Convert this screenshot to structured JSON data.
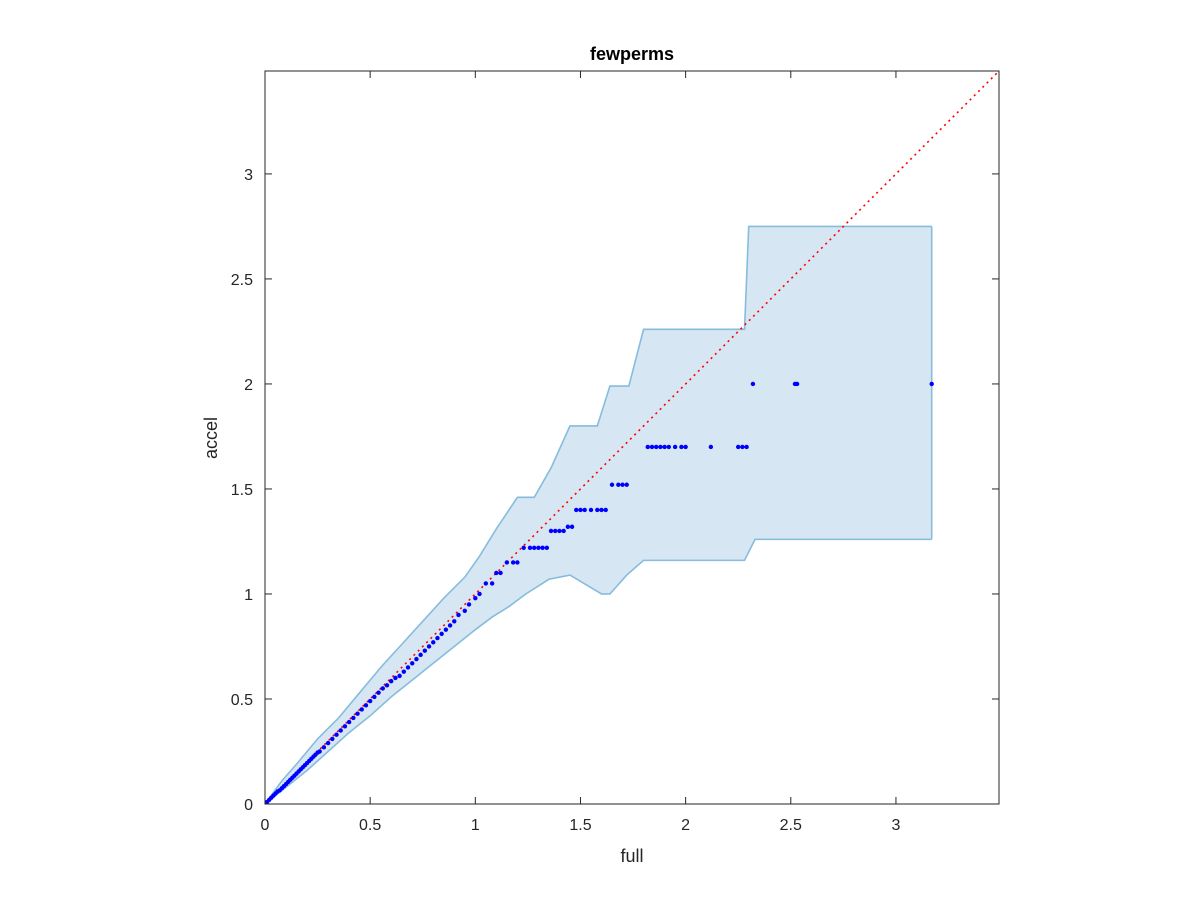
{
  "chart_data": {
    "type": "scatter",
    "title": "fewperms",
    "xlabel": "full",
    "ylabel": "accel",
    "xlim": [
      0,
      3.49
    ],
    "ylim": [
      0,
      3.49
    ],
    "xticks": [
      0,
      0.5,
      1,
      1.5,
      2,
      2.5,
      3
    ],
    "yticks": [
      0,
      0.5,
      1,
      1.5,
      2,
      2.5,
      3
    ],
    "xtick_labels": [
      "0",
      "0.5",
      "1",
      "1.5",
      "2",
      "2.5",
      "3"
    ],
    "ytick_labels": [
      "0",
      "0.5",
      "1",
      "1.5",
      "2",
      "2.5",
      "3"
    ],
    "grid": false,
    "colors": {
      "points": "#0000ff",
      "reference_line": "#ff0000",
      "band_fill": "#d6e6f3",
      "band_edge": "#86bcdc",
      "axes": "#262626"
    },
    "reference_line": {
      "style": "dotted",
      "x": [
        0,
        3.49
      ],
      "y": [
        0,
        3.49
      ]
    },
    "band": {
      "upper": [
        [
          0,
          0
        ],
        [
          0.08,
          0.11
        ],
        [
          0.15,
          0.19
        ],
        [
          0.25,
          0.31
        ],
        [
          0.35,
          0.41
        ],
        [
          0.45,
          0.53
        ],
        [
          0.55,
          0.65
        ],
        [
          0.65,
          0.76
        ],
        [
          0.75,
          0.87
        ],
        [
          0.85,
          0.98
        ],
        [
          0.95,
          1.08
        ],
        [
          1.02,
          1.18
        ],
        [
          1.1,
          1.31
        ],
        [
          1.2,
          1.46
        ],
        [
          1.28,
          1.46
        ],
        [
          1.36,
          1.6
        ],
        [
          1.45,
          1.8
        ],
        [
          1.58,
          1.8
        ],
        [
          1.64,
          1.99
        ],
        [
          1.73,
          1.99
        ],
        [
          1.8,
          2.26
        ],
        [
          2.28,
          2.26
        ],
        [
          2.3,
          2.75
        ],
        [
          3.17,
          2.75
        ]
      ],
      "lower": [
        [
          0,
          0
        ],
        [
          0.1,
          0.08
        ],
        [
          0.2,
          0.16
        ],
        [
          0.3,
          0.25
        ],
        [
          0.4,
          0.34
        ],
        [
          0.5,
          0.42
        ],
        [
          0.6,
          0.51
        ],
        [
          0.7,
          0.59
        ],
        [
          0.8,
          0.67
        ],
        [
          0.9,
          0.75
        ],
        [
          1.0,
          0.83
        ],
        [
          1.08,
          0.89
        ],
        [
          1.16,
          0.94
        ],
        [
          1.24,
          1.0
        ],
        [
          1.35,
          1.07
        ],
        [
          1.45,
          1.09
        ],
        [
          1.6,
          1.0
        ],
        [
          1.64,
          1.0
        ],
        [
          1.72,
          1.09
        ],
        [
          1.8,
          1.16
        ],
        [
          2.28,
          1.16
        ],
        [
          2.33,
          1.26
        ],
        [
          3.17,
          1.26
        ]
      ]
    },
    "series": [
      {
        "x": [
          0.01,
          0.02,
          0.03,
          0.04,
          0.05,
          0.06,
          0.07,
          0.08,
          0.09,
          0.1,
          0.11,
          0.12,
          0.13,
          0.14,
          0.15,
          0.16,
          0.17,
          0.18,
          0.19,
          0.2,
          0.21,
          0.22,
          0.23,
          0.24,
          0.25,
          0.26,
          0.28,
          0.3,
          0.32,
          0.34,
          0.36,
          0.38,
          0.4,
          0.42,
          0.44,
          0.46,
          0.48,
          0.5,
          0.52,
          0.54,
          0.56,
          0.58,
          0.6,
          0.62,
          0.64,
          0.66,
          0.68,
          0.7,
          0.72,
          0.74,
          0.76,
          0.78,
          0.8,
          0.82,
          0.84,
          0.86,
          0.88,
          0.9,
          0.92,
          0.95,
          0.97,
          1.0,
          1.02,
          1.05,
          1.08,
          1.1,
          1.12,
          1.15,
          1.18,
          1.2,
          1.23,
          1.26,
          1.28,
          1.3,
          1.32,
          1.34,
          1.36,
          1.38,
          1.4,
          1.42,
          1.44,
          1.46,
          1.48,
          1.5,
          1.52,
          1.55,
          1.58,
          1.6,
          1.62,
          1.65,
          1.68,
          1.7,
          1.72,
          1.82,
          1.84,
          1.86,
          1.88,
          1.9,
          1.92,
          1.95,
          1.98,
          2.0,
          2.12,
          2.25,
          2.27,
          2.29,
          2.32,
          2.52,
          2.53,
          3.17
        ],
        "y": [
          0.01,
          0.02,
          0.03,
          0.04,
          0.05,
          0.06,
          0.065,
          0.075,
          0.085,
          0.095,
          0.105,
          0.115,
          0.125,
          0.135,
          0.145,
          0.155,
          0.165,
          0.175,
          0.185,
          0.195,
          0.205,
          0.215,
          0.225,
          0.235,
          0.245,
          0.25,
          0.27,
          0.29,
          0.31,
          0.33,
          0.35,
          0.37,
          0.39,
          0.41,
          0.43,
          0.45,
          0.47,
          0.49,
          0.51,
          0.53,
          0.55,
          0.565,
          0.585,
          0.6,
          0.61,
          0.63,
          0.65,
          0.67,
          0.69,
          0.71,
          0.73,
          0.75,
          0.77,
          0.79,
          0.81,
          0.83,
          0.85,
          0.87,
          0.9,
          0.92,
          0.95,
          0.98,
          1.0,
          1.05,
          1.05,
          1.1,
          1.1,
          1.15,
          1.15,
          1.15,
          1.22,
          1.22,
          1.22,
          1.22,
          1.22,
          1.22,
          1.3,
          1.3,
          1.3,
          1.3,
          1.32,
          1.32,
          1.4,
          1.4,
          1.4,
          1.4,
          1.4,
          1.4,
          1.4,
          1.52,
          1.52,
          1.52,
          1.52,
          1.7,
          1.7,
          1.7,
          1.7,
          1.7,
          1.7,
          1.7,
          1.7,
          1.7,
          1.7,
          1.7,
          1.7,
          1.7,
          2.0,
          2.0,
          2.0,
          2.0
        ]
      }
    ]
  }
}
